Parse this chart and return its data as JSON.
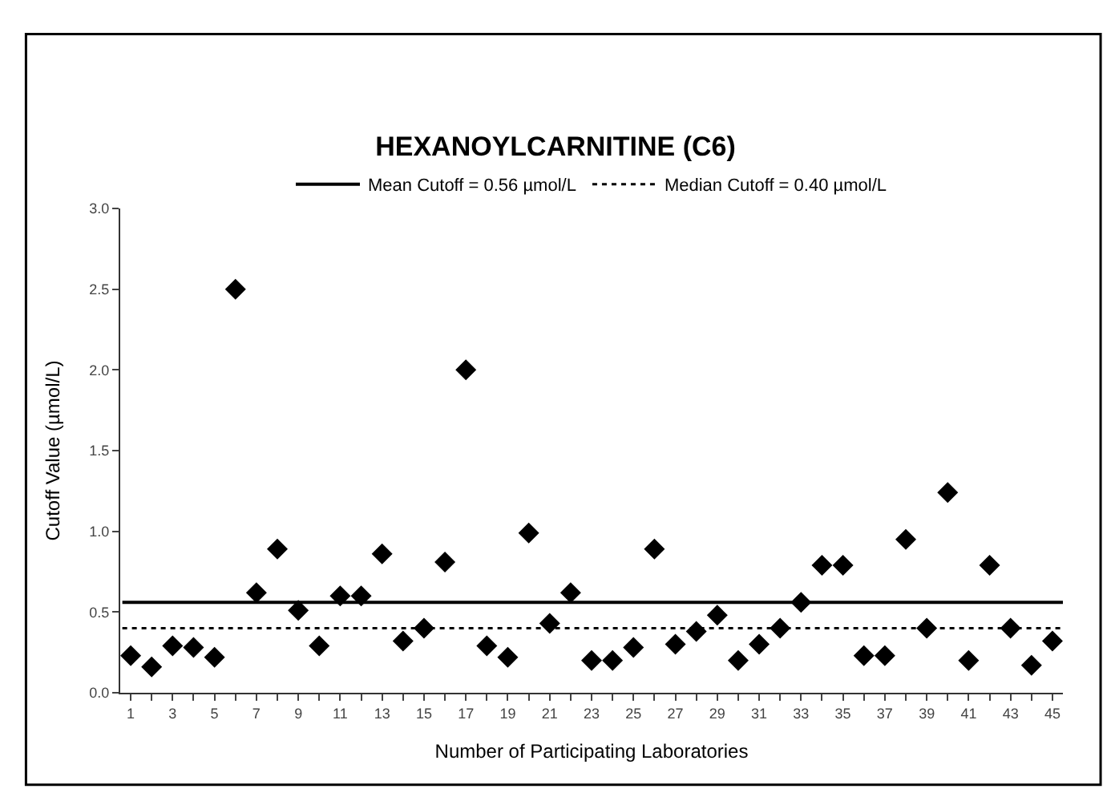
{
  "chart_data": {
    "type": "scatter",
    "title": "HEXANOYLCARNITINE (C6)",
    "xlabel": "Number of Participating Laboratories",
    "ylabel": "Cutoff Value (µmol/L)",
    "x": [
      1,
      2,
      3,
      4,
      5,
      6,
      7,
      8,
      9,
      10,
      11,
      12,
      13,
      14,
      15,
      16,
      17,
      18,
      19,
      20,
      21,
      22,
      23,
      24,
      25,
      26,
      27,
      28,
      29,
      30,
      31,
      32,
      33,
      34,
      35,
      36,
      37,
      38,
      39,
      40,
      41,
      42,
      43,
      44,
      45
    ],
    "series": [
      {
        "color": "#000000",
        "values": [
          0.23,
          0.16,
          0.29,
          0.28,
          0.22,
          2.5,
          0.62,
          0.89,
          0.51,
          0.29,
          0.6,
          0.6,
          0.86,
          0.32,
          0.4,
          0.81,
          2.0,
          0.29,
          0.22,
          0.99,
          0.43,
          0.62,
          0.2,
          0.2,
          0.28,
          0.89,
          0.3,
          0.38,
          0.48,
          0.2,
          0.3,
          0.4,
          0.56,
          0.79,
          0.79,
          0.23,
          0.23,
          0.95,
          0.4,
          1.24,
          0.2,
          0.79,
          0.4,
          0.17,
          0.32
        ]
      }
    ],
    "marker": "diamond",
    "legend": "top",
    "ref_lines": [
      {
        "axis": "y",
        "value": 0.56,
        "label": "Mean Cutoff = 0.56 µmol/L",
        "color": "#000000",
        "line_style": "solid"
      },
      {
        "axis": "y",
        "value": 0.4,
        "label": "Median Cutoff = 0.40 µmol/L",
        "color": "#000000",
        "line_style": "dotted"
      }
    ],
    "xlim": [
      0.5,
      45.5
    ],
    "xticks": [
      1,
      {
        "value": 2,
        "label": null
      },
      3,
      {
        "value": 4,
        "label": null
      },
      5,
      {
        "value": 6,
        "label": null
      },
      7,
      {
        "value": 8,
        "label": null
      },
      9,
      {
        "value": 10,
        "label": null
      },
      11,
      {
        "value": 12,
        "label": null
      },
      13,
      {
        "value": 14,
        "label": null
      },
      15,
      {
        "value": 16,
        "label": null
      },
      17,
      {
        "value": 18,
        "label": null
      },
      19,
      {
        "value": 20,
        "label": null
      },
      21,
      {
        "value": 22,
        "label": null
      },
      23,
      {
        "value": 24,
        "label": null
      },
      25,
      {
        "value": 26,
        "label": null
      },
      27,
      {
        "value": 28,
        "label": null
      },
      29,
      {
        "value": 30,
        "label": null
      },
      31,
      {
        "value": 32,
        "label": null
      },
      33,
      {
        "value": 34,
        "label": null
      },
      35,
      {
        "value": 36,
        "label": null
      },
      37,
      {
        "value": 38,
        "label": null
      },
      39,
      {
        "value": 40,
        "label": null
      },
      41,
      {
        "value": 42,
        "label": null
      },
      43,
      {
        "value": 44,
        "label": null
      },
      45
    ],
    "ylim": [
      0,
      3
    ],
    "yticks": [
      {
        "value": 0,
        "label": "0.0"
      },
      {
        "value": 0.5,
        "label": "0.5"
      },
      {
        "value": 1,
        "label": "1.0"
      },
      {
        "value": 1.5,
        "label": "1.5"
      },
      {
        "value": 2,
        "label": "2.0"
      },
      {
        "value": 2.5,
        "label": "2.5"
      },
      {
        "value": 3,
        "label": "3.0"
      }
    ]
  }
}
